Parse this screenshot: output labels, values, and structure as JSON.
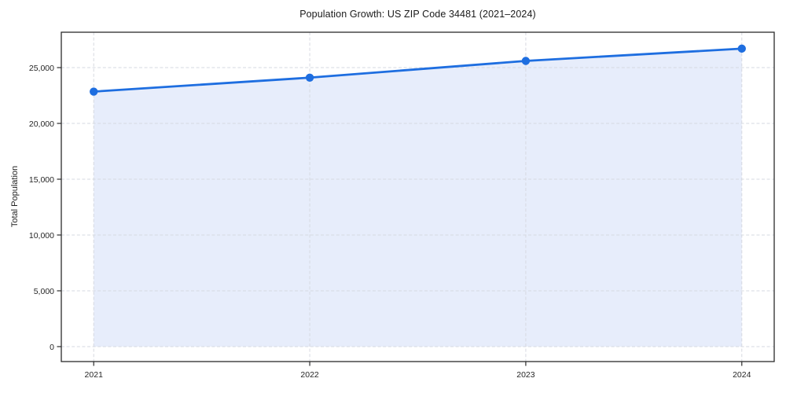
{
  "chart_data": {
    "type": "line",
    "title": "Population Growth: US ZIP Code 34481 (2021–2024)",
    "xlabel": "",
    "ylabel": "Total Population",
    "x": [
      2021,
      2022,
      2023,
      2024
    ],
    "series": [
      {
        "name": "Total Population",
        "values": [
          22850,
          24100,
          25600,
          26700
        ]
      }
    ],
    "area_fill": true,
    "fill_baseline": 0,
    "markers": "circle",
    "xticks": [
      {
        "value": 2021,
        "label": "2021"
      },
      {
        "value": 2022,
        "label": "2022"
      },
      {
        "value": 2023,
        "label": "2023"
      },
      {
        "value": 2024,
        "label": "2024"
      }
    ],
    "yticks": [
      {
        "value": 0,
        "label": "0"
      },
      {
        "value": 5000,
        "label": "5,000"
      },
      {
        "value": 10000,
        "label": "10,000"
      },
      {
        "value": 15000,
        "label": "15,000"
      },
      {
        "value": 20000,
        "label": "20,000"
      },
      {
        "value": 25000,
        "label": "25,000"
      }
    ],
    "xlim": [
      2020.85,
      2024.15
    ],
    "ylim": [
      -1340,
      28170
    ],
    "grid": {
      "visible": true,
      "style": "dashed",
      "both_axes": true
    },
    "legend": {
      "visible": false
    },
    "colors": {
      "line": "#1e6ee0",
      "marker": "#1e6ee0",
      "fill": "#e7edfb",
      "grid": "#d6d9e0",
      "spine": "#2b2b2b",
      "tick_text": "#262626",
      "title_text": "#1a1a1a"
    }
  }
}
